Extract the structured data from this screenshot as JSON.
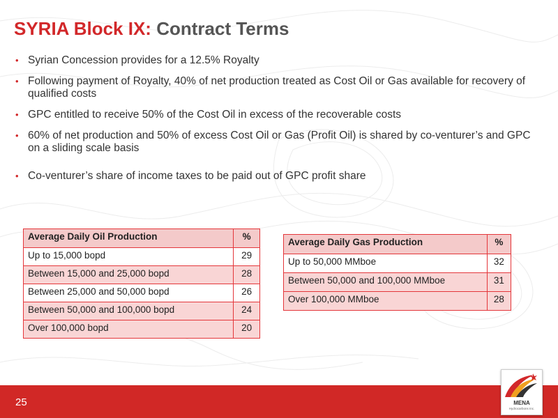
{
  "title": {
    "red": "SYRIA Block IX:",
    "gray": "Contract Terms"
  },
  "bullets": [
    "Syrian Concession provides for a 12.5% Royalty",
    "Following payment of Royalty, 40% of net production treated as Cost Oil or Gas available for recovery of qualified costs",
    "GPC entitled to receive 50% of the Cost Oil in excess of the recoverable costs",
    "60% of net production and 50% of excess Cost Oil or Gas (Profit Oil) is shared by co-venturer’s and GPC on a sliding scale basis",
    "Co-venturer’s share of income taxes to be paid out of GPC profit share"
  ],
  "oil_table": {
    "headers": [
      "Average Daily Oil Production",
      "%"
    ],
    "rows": [
      [
        "Up to 15,000 bopd",
        "29"
      ],
      [
        "Between 15,000 and 25,000 bopd",
        "28"
      ],
      [
        "Between 25,000 and 50,000 bopd",
        "26"
      ],
      [
        "Between 50,000 and 100,000 bopd",
        "24"
      ],
      [
        "Over 100,000 bopd",
        "20"
      ]
    ]
  },
  "gas_table": {
    "headers": [
      "Average Daily Gas Production",
      "%"
    ],
    "rows": [
      [
        "Up to 50,000 MMboe",
        "32"
      ],
      [
        "Between 50,000 and 100,000 MMboe",
        "31"
      ],
      [
        "Over 100,000 MMboe",
        "28"
      ]
    ]
  },
  "footer": {
    "page_number": "25"
  },
  "logo": {
    "name": "MENA",
    "subtitle": "Hydrocarbons Inc."
  },
  "colors": {
    "brand_red": "#d2282a",
    "table_border": "#e4363a",
    "table_pink": "#f9d5d5",
    "title_gray": "#555555"
  }
}
